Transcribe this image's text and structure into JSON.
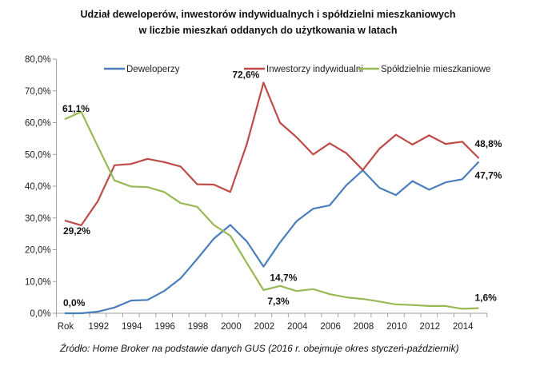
{
  "chart_data": {
    "type": "line",
    "title": [
      "Udział deweloperów, inwestorów indywidualnych i spółdzielni mieszkaniowych",
      "w liczbie mieszkań oddanych do użytkowania w latach"
    ],
    "categories": [
      "Rok",
      "",
      "1992",
      "",
      "1994",
      "",
      "1996",
      "",
      "1998",
      "",
      "2000",
      "",
      "2002",
      "",
      "2004",
      "",
      "2006",
      "",
      "2008",
      "",
      "2010",
      "",
      "2012",
      "",
      "2014",
      ""
    ],
    "ylim": [
      0,
      80
    ],
    "yticks": [
      "0,0%",
      "10,0%",
      "20,0%",
      "30,0%",
      "40,0%",
      "50,0%",
      "60,0%",
      "70,0%",
      "80,0%"
    ],
    "grid": false,
    "legend": "top",
    "series": [
      {
        "name": "Deweloperzy",
        "color": "#4a7ebb",
        "values": [
          0.0,
          0.0,
          0.5,
          1.8,
          4.0,
          4.2,
          7.0,
          11.0,
          17.1,
          23.5,
          27.8,
          22.6,
          14.7,
          22.3,
          29.0,
          32.9,
          34.0,
          40.3,
          45.0,
          39.5,
          37.2,
          41.6,
          38.9,
          41.2,
          42.2,
          47.7
        ]
      },
      {
        "name": "Inwestorzy indywidualni",
        "color": "#be4b48",
        "values": [
          29.2,
          27.7,
          35.3,
          46.6,
          47.0,
          48.6,
          47.6,
          46.2,
          40.6,
          40.5,
          38.2,
          53.3,
          72.6,
          60.0,
          55.4,
          50.0,
          53.5,
          50.4,
          45.1,
          51.8,
          56.2,
          53.1,
          56.0,
          53.3,
          54.0,
          48.8
        ]
      },
      {
        "name": "Spółdzielnie mieszkaniowe",
        "color": "#98b954",
        "values": [
          61.1,
          63.4,
          52.5,
          41.8,
          39.9,
          39.7,
          38.2,
          34.7,
          33.5,
          27.8,
          24.4,
          15.8,
          7.3,
          8.6,
          7.0,
          7.6,
          6.0,
          5.0,
          4.5,
          3.7,
          2.8,
          2.6,
          2.3,
          2.3,
          1.4,
          1.6
        ]
      }
    ],
    "annotations": [
      {
        "series": 2,
        "index": 0,
        "text": "61,1%"
      },
      {
        "series": 1,
        "index": 0,
        "text": "29,2%"
      },
      {
        "series": 0,
        "index": 0,
        "text": "0,0%"
      },
      {
        "series": 1,
        "index": 12,
        "text": "72,6%"
      },
      {
        "series": 0,
        "index": 12,
        "text": "14,7%"
      },
      {
        "series": 2,
        "index": 12,
        "text": "7,3%"
      },
      {
        "series": 1,
        "index": 25,
        "text": "48,8%"
      },
      {
        "series": 0,
        "index": 25,
        "text": "47,7%"
      },
      {
        "series": 2,
        "index": 25,
        "text": "1,6%"
      }
    ]
  },
  "source": "Źródło: Home Broker na podstawie danych GUS (2016 r. obejmuje okres styczeń-październik)"
}
